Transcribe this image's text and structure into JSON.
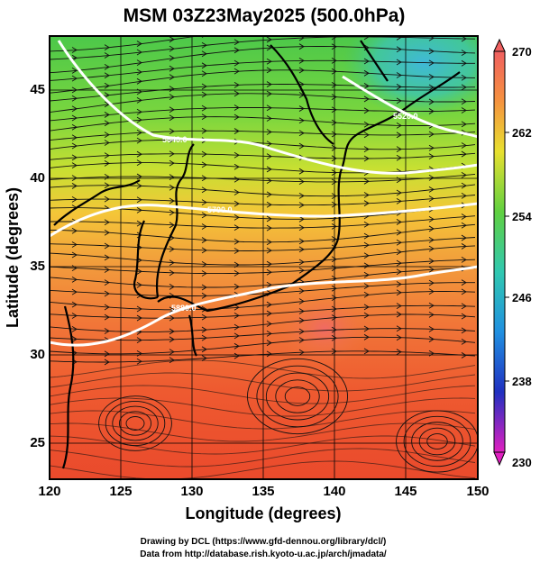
{
  "title": "MSM 03Z23May2025 (500.0hPa)",
  "axes": {
    "xlabel": "Longitude (degrees)",
    "ylabel": "Latitude  (degrees)",
    "xticks": [
      "120",
      "125",
      "130",
      "135",
      "140",
      "145",
      "150"
    ],
    "yticks": [
      "25",
      "30",
      "35",
      "40",
      "45"
    ],
    "xlim": [
      120,
      150
    ],
    "ylim": [
      22.5,
      48
    ]
  },
  "colorbar": {
    "labels": [
      "270",
      "262",
      "254",
      "246",
      "238",
      "230"
    ],
    "range": [
      230,
      270
    ]
  },
  "contours": [
    {
      "label": "5880.0"
    },
    {
      "label": "5700.0"
    },
    {
      "label": "5640.0"
    },
    {
      "label": "5520.0"
    }
  ],
  "footer": {
    "line1": "Drawing by DCL (https://www.gfd-dennou.org/library/dcl/)",
    "line2": "Data from http://database.rish.kyoto-u.ac.jp/arch/jmadata/"
  }
}
